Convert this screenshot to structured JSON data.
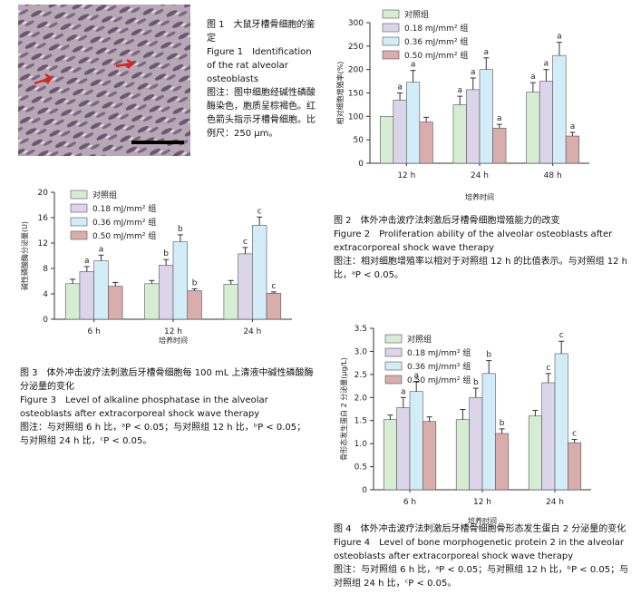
{
  "figure1": {
    "title_zh": "图 1　大鼠牙槽骨细胞的鉴定",
    "title_en": "Figure 1　Identification of the rat alveolar osteoblasts",
    "note": "图注：图中细胞经碱性磷酸酶染色，胞质呈棕褐色。红色箭头指示牙槽骨细胞。比例尺：250 μm。"
  },
  "chart_data": [
    {
      "type": "bar",
      "ylabel": "相对细胞增殖率(%)",
      "xlabel": "培养时间",
      "categories": [
        "12 h",
        "24 h",
        "48 h"
      ],
      "ylim": [
        0,
        300
      ],
      "yticks": [
        0,
        50,
        100,
        150,
        200,
        250,
        300
      ],
      "series": [
        {
          "name": "对照组",
          "color": "#d6edd3",
          "values": [
            100,
            125,
            152
          ],
          "errors": [
            0,
            18,
            20
          ],
          "annotations": [
            null,
            "a",
            "a"
          ]
        },
        {
          "name": "0.18 mJ/mm² 组",
          "color": "#dcd5ea",
          "values": [
            135,
            157,
            175
          ],
          "errors": [
            15,
            25,
            25
          ],
          "annotations": [
            "a",
            "a",
            "a"
          ]
        },
        {
          "name": "0.36 mJ/mm² 组",
          "color": "#d2ecf8",
          "values": [
            173,
            200,
            230
          ],
          "errors": [
            25,
            25,
            28
          ],
          "annotations": [
            "a",
            "a",
            "a"
          ]
        },
        {
          "name": "0.50 mJ/mm² 组",
          "color": "#d9adac",
          "values": [
            88,
            75,
            58
          ],
          "errors": [
            10,
            8,
            8
          ],
          "annotations": [
            null,
            "a",
            "a"
          ]
        }
      ],
      "caption": {
        "title_zh": "图 2　体外冲击波疗法刺激后牙槽骨细胞增殖能力的改变",
        "title_en": "Figure 2　Proliferation ability of the alveolar osteoblasts after extracorporeal shock wave therapy",
        "note": "图注：相对细胞增殖率以相对于对照组 12 h 的比值表示。与对照组 12 h 比，ᵃP < 0.05。"
      }
    },
    {
      "type": "bar",
      "ylabel": "碱性磷酸酶分泌量(U)",
      "xlabel": "培养时间",
      "categories": [
        "6 h",
        "12 h",
        "24 h"
      ],
      "ylim": [
        0,
        20
      ],
      "yticks": [
        0,
        4,
        8,
        12,
        16,
        20
      ],
      "series": [
        {
          "name": "对照组",
          "color": "#d6edd3",
          "values": [
            5.6,
            5.6,
            5.5
          ],
          "errors": [
            0.7,
            0.5,
            0.6
          ],
          "annotations": [
            null,
            null,
            null
          ]
        },
        {
          "name": "0.18 mJ/mm² 组",
          "color": "#dcd5ea",
          "values": [
            7.5,
            8.5,
            10.3
          ],
          "errors": [
            0.8,
            0.9,
            1.0
          ],
          "annotations": [
            "a",
            "b",
            "c"
          ]
        },
        {
          "name": "0.36 mJ/mm² 组",
          "color": "#d2ecf8",
          "values": [
            9.2,
            12.2,
            14.8
          ],
          "errors": [
            0.9,
            1.1,
            1.3
          ],
          "annotations": [
            "a",
            "b",
            "c"
          ]
        },
        {
          "name": "0.50 mJ/mm² 组",
          "color": "#d9adac",
          "values": [
            5.2,
            4.5,
            4.1
          ],
          "errors": [
            0.6,
            0.3,
            0.2
          ],
          "annotations": [
            null,
            "b",
            "c"
          ]
        }
      ],
      "caption": {
        "title_zh": "图 3　体外冲击波疗法刺激后牙槽骨细胞每 100 mL 上清液中碱性磷酸酶分泌量的变化",
        "title_en": "Figure 3　Level of alkaline phosphatase in the alveolar osteoblasts after extracorporeal shock wave therapy",
        "note": "图注：与对照组 6 h 比，ᵃP < 0.05；与对照组 12 h 比，ᵇP < 0.05；与对照组 24 h 比，ᶜP < 0.05。"
      }
    },
    {
      "type": "bar",
      "ylabel": "骨形态发生蛋白 2 分泌量(μg/L)",
      "xlabel": "培养时间",
      "categories": [
        "6 h",
        "12 h",
        "24 h"
      ],
      "ylim": [
        0,
        3.5
      ],
      "yticks": [
        0,
        0.5,
        {
          "value": 1,
          "label": "1.0"
        },
        1.5,
        {
          "value": 2,
          "label": "2.0"
        },
        2.5,
        {
          "value": 3,
          "label": "3.0"
        },
        3.5
      ],
      "series": [
        {
          "name": "对照组",
          "color": "#d6edd3",
          "values": [
            1.52,
            1.52,
            1.6
          ],
          "errors": [
            0.1,
            0.22,
            0.12
          ],
          "annotations": [
            null,
            null,
            null
          ]
        },
        {
          "name": "0.18 mJ/mm² 组",
          "color": "#dcd5ea",
          "values": [
            1.78,
            2.0,
            2.32
          ],
          "errors": [
            0.22,
            0.2,
            0.2
          ],
          "annotations": [
            "a",
            "b",
            "c"
          ]
        },
        {
          "name": "0.36 mJ/mm² 组",
          "color": "#d2ecf8",
          "values": [
            2.13,
            2.52,
            2.95
          ],
          "errors": [
            0.22,
            0.28,
            0.27
          ],
          "annotations": [
            "a",
            "b",
            "c"
          ]
        },
        {
          "name": "0.50 mJ/mm² 组",
          "color": "#d9adac",
          "values": [
            1.48,
            1.22,
            1.02
          ],
          "errors": [
            0.1,
            0.1,
            0.07
          ],
          "annotations": [
            null,
            "b",
            "c"
          ]
        }
      ],
      "caption": {
        "title_zh": "图 4　体外冲击波疗法刺激后牙槽骨细胞骨形态发生蛋白 2 分泌量的变化",
        "title_en": "Figure 4　Level of bone morphogenetic protein 2 in the alveolar osteoblasts after extracorporeal shock wave therapy",
        "note": "图注：与对照组 6 h 比，ᵃP < 0.05；与对照组 12 h 比，ᵇP < 0.05；与对照组 24 h 比，ᶜP < 0.05。"
      }
    }
  ]
}
